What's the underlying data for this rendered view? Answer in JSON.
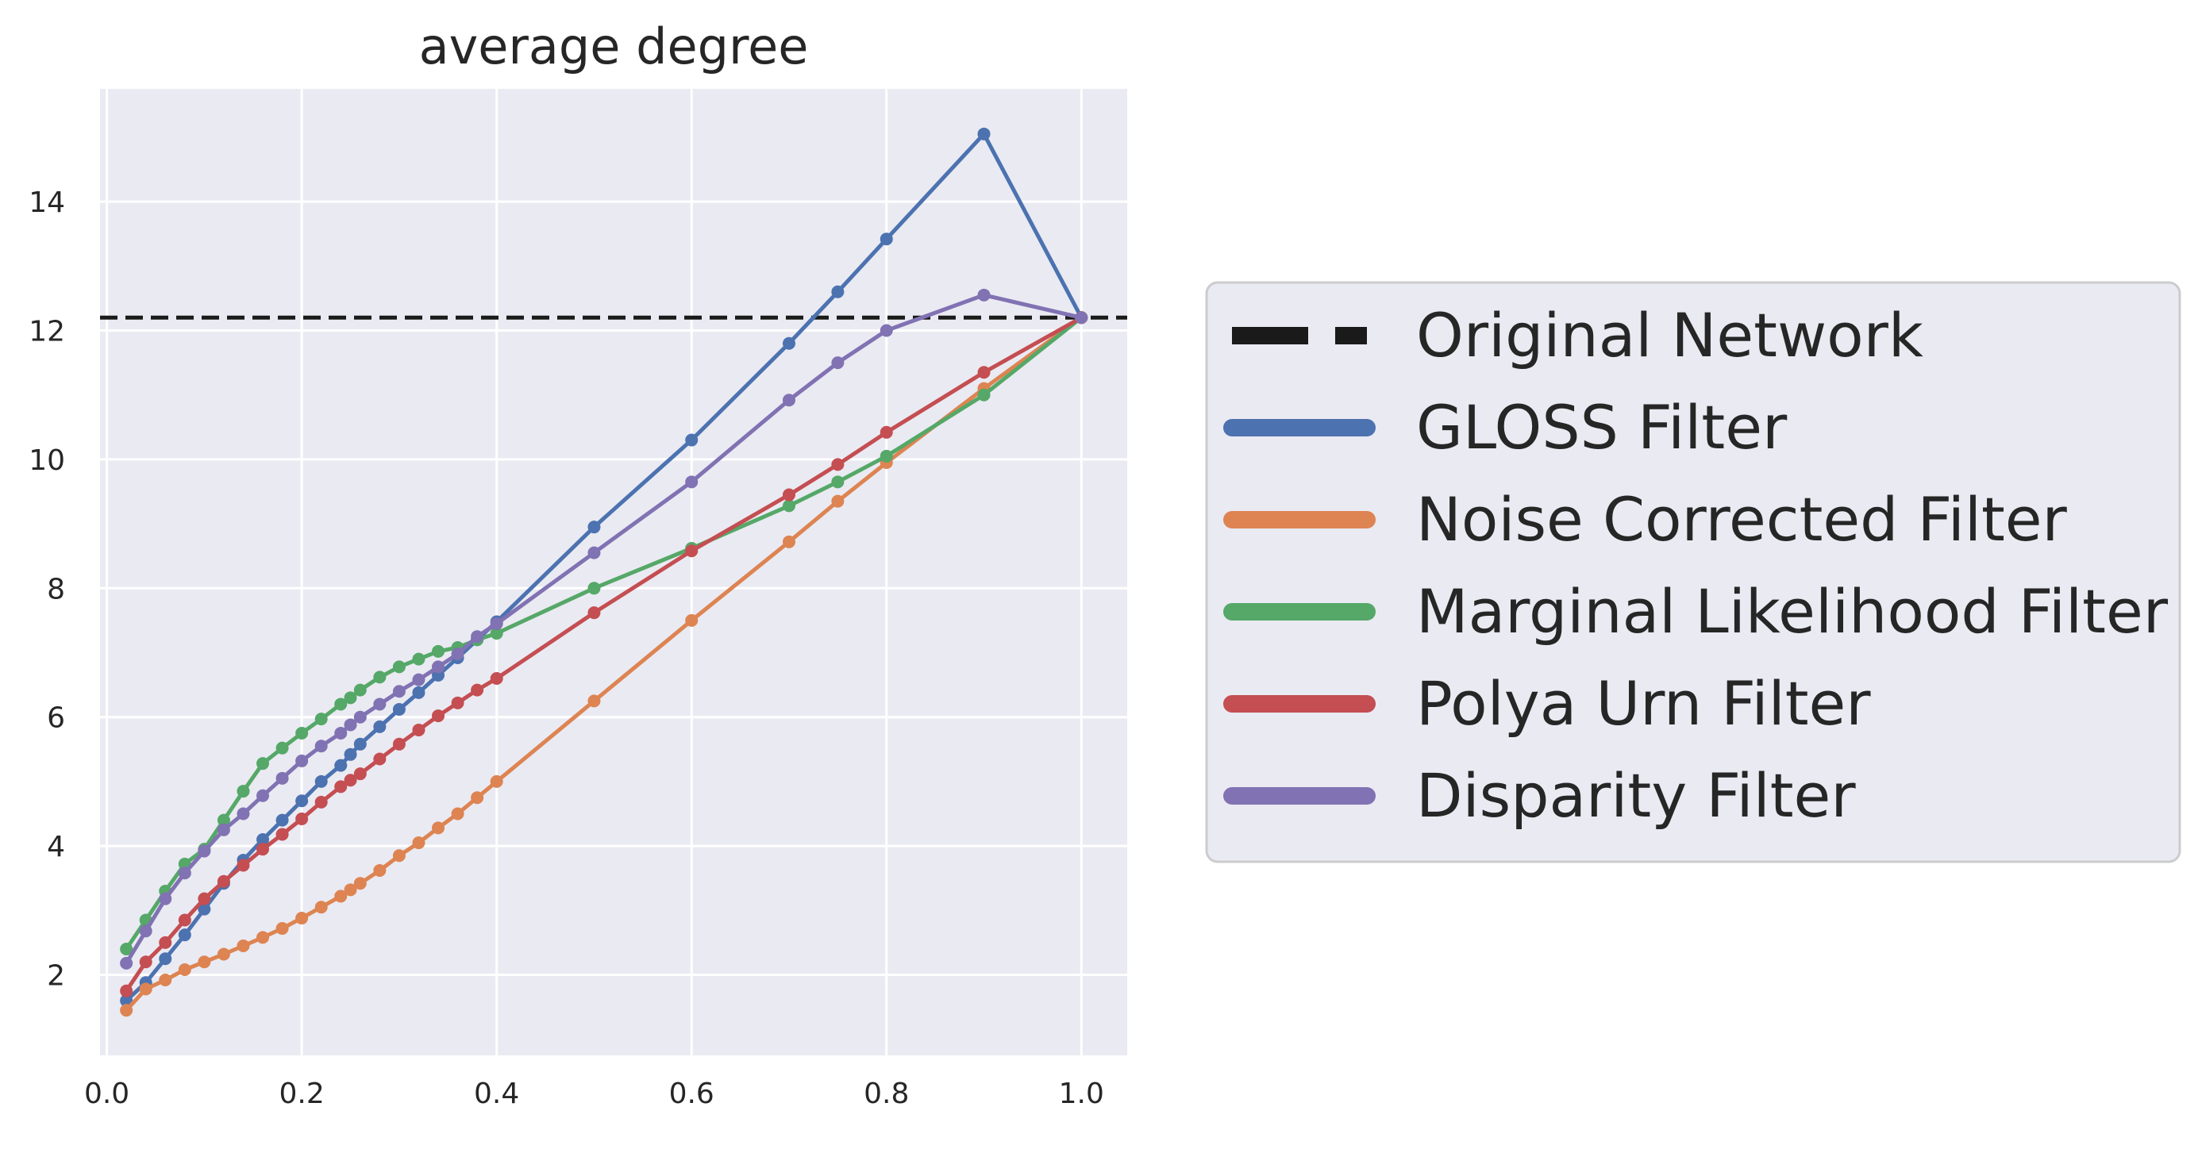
{
  "chart_data": {
    "type": "line",
    "title": "average degree",
    "xlabel": "",
    "ylabel": "",
    "xlim": [
      -0.007,
      1.047
    ],
    "ylim": [
      0.75,
      15.75
    ],
    "x_ticks": [
      0.0,
      0.2,
      0.4,
      0.6,
      0.8,
      1.0
    ],
    "x_tick_labels": [
      "0.0",
      "0.2",
      "0.4",
      "0.6",
      "0.8",
      "1.0"
    ],
    "y_ticks": [
      2,
      4,
      6,
      8,
      10,
      12,
      14
    ],
    "y_tick_labels": [
      "2",
      "4",
      "6",
      "8",
      "10",
      "12",
      "14"
    ],
    "grid": true,
    "legend_position": "outside-right",
    "reference_line": {
      "name": "Original Network",
      "y": 12.2,
      "style": "dashed",
      "color": "#1a1a1a"
    },
    "series": [
      {
        "name": "GLOSS Filter",
        "color": "#4c72b0",
        "x": [
          0.02,
          0.04,
          0.06,
          0.08,
          0.1,
          0.12,
          0.14,
          0.16,
          0.18,
          0.2,
          0.22,
          0.24,
          0.25,
          0.26,
          0.28,
          0.3,
          0.32,
          0.34,
          0.36,
          0.38,
          0.4,
          0.5,
          0.6,
          0.7,
          0.75,
          0.8,
          0.9,
          1.0
        ],
        "y": [
          1.6,
          1.88,
          2.25,
          2.62,
          3.02,
          3.42,
          3.78,
          4.1,
          4.4,
          4.7,
          5.0,
          5.25,
          5.42,
          5.58,
          5.85,
          6.12,
          6.38,
          6.65,
          6.92,
          7.2,
          7.48,
          8.95,
          10.3,
          11.8,
          12.6,
          13.42,
          15.05,
          12.2
        ]
      },
      {
        "name": "Noise Corrected Filter",
        "color": "#dd8452",
        "x": [
          0.02,
          0.04,
          0.06,
          0.08,
          0.1,
          0.12,
          0.14,
          0.16,
          0.18,
          0.2,
          0.22,
          0.24,
          0.25,
          0.26,
          0.28,
          0.3,
          0.32,
          0.34,
          0.36,
          0.38,
          0.4,
          0.5,
          0.6,
          0.7,
          0.75,
          0.8,
          0.9,
          1.0
        ],
        "y": [
          1.45,
          1.78,
          1.92,
          2.08,
          2.2,
          2.32,
          2.45,
          2.58,
          2.72,
          2.88,
          3.05,
          3.22,
          3.32,
          3.42,
          3.62,
          3.85,
          4.05,
          4.28,
          4.5,
          4.75,
          5.0,
          6.25,
          7.5,
          8.72,
          9.35,
          9.95,
          11.1,
          12.2
        ]
      },
      {
        "name": "Marginal Likelihood Filter",
        "color": "#55a868",
        "x": [
          0.02,
          0.04,
          0.06,
          0.08,
          0.1,
          0.12,
          0.14,
          0.16,
          0.18,
          0.2,
          0.22,
          0.24,
          0.25,
          0.26,
          0.28,
          0.3,
          0.32,
          0.34,
          0.36,
          0.38,
          0.4,
          0.5,
          0.6,
          0.7,
          0.75,
          0.8,
          0.9,
          1.0
        ],
        "y": [
          2.4,
          2.85,
          3.3,
          3.72,
          3.95,
          4.4,
          4.85,
          5.28,
          5.52,
          5.75,
          5.97,
          6.2,
          6.3,
          6.42,
          6.62,
          6.78,
          6.9,
          7.02,
          7.08,
          7.2,
          7.3,
          8.0,
          8.62,
          9.28,
          9.65,
          10.05,
          11.0,
          12.2
        ]
      },
      {
        "name": "Polya Urn Filter",
        "color": "#c44e52",
        "x": [
          0.02,
          0.04,
          0.06,
          0.08,
          0.1,
          0.12,
          0.14,
          0.16,
          0.18,
          0.2,
          0.22,
          0.24,
          0.25,
          0.26,
          0.28,
          0.3,
          0.32,
          0.34,
          0.36,
          0.38,
          0.4,
          0.5,
          0.6,
          0.7,
          0.75,
          0.8,
          0.9,
          1.0
        ],
        "y": [
          1.75,
          2.2,
          2.5,
          2.85,
          3.18,
          3.45,
          3.7,
          3.95,
          4.18,
          4.42,
          4.68,
          4.92,
          5.02,
          5.12,
          5.35,
          5.58,
          5.8,
          6.02,
          6.22,
          6.42,
          6.6,
          7.62,
          8.58,
          9.45,
          9.92,
          10.42,
          11.35,
          12.2
        ]
      },
      {
        "name": "Disparity Filter",
        "color": "#8172b3",
        "x": [
          0.02,
          0.04,
          0.06,
          0.08,
          0.1,
          0.12,
          0.14,
          0.16,
          0.18,
          0.2,
          0.22,
          0.24,
          0.25,
          0.26,
          0.28,
          0.3,
          0.32,
          0.34,
          0.36,
          0.38,
          0.4,
          0.5,
          0.6,
          0.7,
          0.75,
          0.8,
          0.9,
          1.0
        ],
        "y": [
          2.18,
          2.68,
          3.18,
          3.58,
          3.92,
          4.25,
          4.5,
          4.78,
          5.05,
          5.32,
          5.55,
          5.75,
          5.88,
          6.0,
          6.2,
          6.4,
          6.58,
          6.78,
          6.98,
          7.25,
          7.45,
          8.55,
          9.65,
          10.92,
          11.5,
          12.0,
          12.55,
          12.2
        ]
      }
    ]
  }
}
